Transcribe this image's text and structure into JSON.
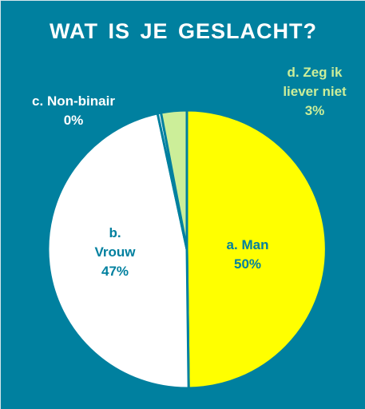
{
  "title": "WAT IS JE GESLACHT?",
  "colors": {
    "background": "#00809F",
    "title": "#FFFFFF",
    "divider": "#00809F"
  },
  "chart_data": {
    "type": "pie",
    "title": "WAT IS JE GESLACHT?",
    "start_angle_deg": 0,
    "direction": "clockwise",
    "slices": [
      {
        "key": "man",
        "label_lines": [
          "a. Man",
          "50%"
        ],
        "category": "a. Man",
        "value": 50,
        "display": "50%",
        "color": "#FFFF00",
        "label_color": "#00809F"
      },
      {
        "key": "vrouw",
        "label_lines": [
          "b.",
          "Vrouw",
          "47%"
        ],
        "category": "b. Vrouw",
        "value": 47,
        "display": "47%",
        "color": "#FFFFFF",
        "label_color": "#00809F"
      },
      {
        "key": "nonbinair",
        "label_lines": [
          "c. Non-binair",
          "0%"
        ],
        "category": "c. Non-binair",
        "value": 0.4,
        "display": "0%",
        "color": "#FFFFFF",
        "label_color": "#FFFFFF"
      },
      {
        "key": "zeg",
        "label_lines": [
          "d. Zeg ik",
          "liever niet",
          "3%"
        ],
        "category": "d. Zeg ik liever niet",
        "value": 3,
        "display": "3%",
        "color": "#CCEE99",
        "label_color": "#CCEE99"
      }
    ]
  }
}
